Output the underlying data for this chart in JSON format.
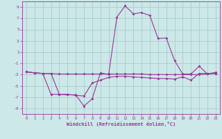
{
  "xlabel": "Windchill (Refroidissement éolien,°C)",
  "background_color": "#cce8e8",
  "grid_color": "#aacccc",
  "line_color": "#993399",
  "xlim": [
    -0.5,
    23.5
  ],
  "ylim": [
    -10,
    10
  ],
  "xticks": [
    0,
    1,
    2,
    3,
    4,
    5,
    6,
    7,
    8,
    9,
    10,
    11,
    12,
    13,
    14,
    15,
    16,
    17,
    18,
    19,
    20,
    21,
    22,
    23
  ],
  "yticks": [
    -9,
    -7,
    -5,
    -3,
    -1,
    1,
    3,
    5,
    7,
    9
  ],
  "line1_x": [
    0,
    1,
    2,
    3,
    4,
    5,
    6,
    7,
    8,
    9,
    10,
    11,
    12,
    13,
    14,
    15,
    16,
    17,
    18,
    19,
    20,
    21,
    22,
    23
  ],
  "line1_y": [
    -2.5,
    -2.7,
    -2.8,
    -2.8,
    -2.9,
    -2.9,
    -2.9,
    -2.9,
    -2.9,
    -2.9,
    -2.9,
    -2.9,
    -2.9,
    -2.9,
    -2.9,
    -3.0,
    -3.0,
    -3.0,
    -3.0,
    -3.0,
    -3.0,
    -3.0,
    -2.9,
    -2.8
  ],
  "line2_x": [
    0,
    1,
    2,
    3,
    4,
    5,
    6,
    7,
    8,
    9,
    10,
    11,
    12,
    13,
    14,
    15,
    16,
    17,
    18,
    19,
    20,
    21,
    22,
    23
  ],
  "line2_y": [
    -2.5,
    -2.7,
    -2.8,
    -6.5,
    -6.5,
    -6.6,
    -6.6,
    -8.6,
    -7.3,
    -2.7,
    -3.0,
    7.2,
    9.2,
    7.8,
    8.0,
    7.5,
    3.4,
    3.5,
    -0.5,
    -2.9,
    -2.9,
    -1.5,
    -2.9,
    -2.6
  ],
  "line3_x": [
    0,
    1,
    2,
    3,
    4,
    5,
    6,
    7,
    8,
    9,
    10,
    11,
    12,
    13,
    14,
    15,
    16,
    17,
    18,
    19,
    20,
    21,
    22,
    23
  ],
  "line3_y": [
    -2.5,
    -2.7,
    -2.8,
    -2.8,
    -6.5,
    -6.5,
    -6.7,
    -6.8,
    -4.5,
    -4.0,
    -3.5,
    -3.3,
    -3.3,
    -3.4,
    -3.5,
    -3.6,
    -3.7,
    -3.7,
    -3.8,
    -3.4,
    -4.0,
    -2.8,
    -2.8,
    -2.8
  ]
}
